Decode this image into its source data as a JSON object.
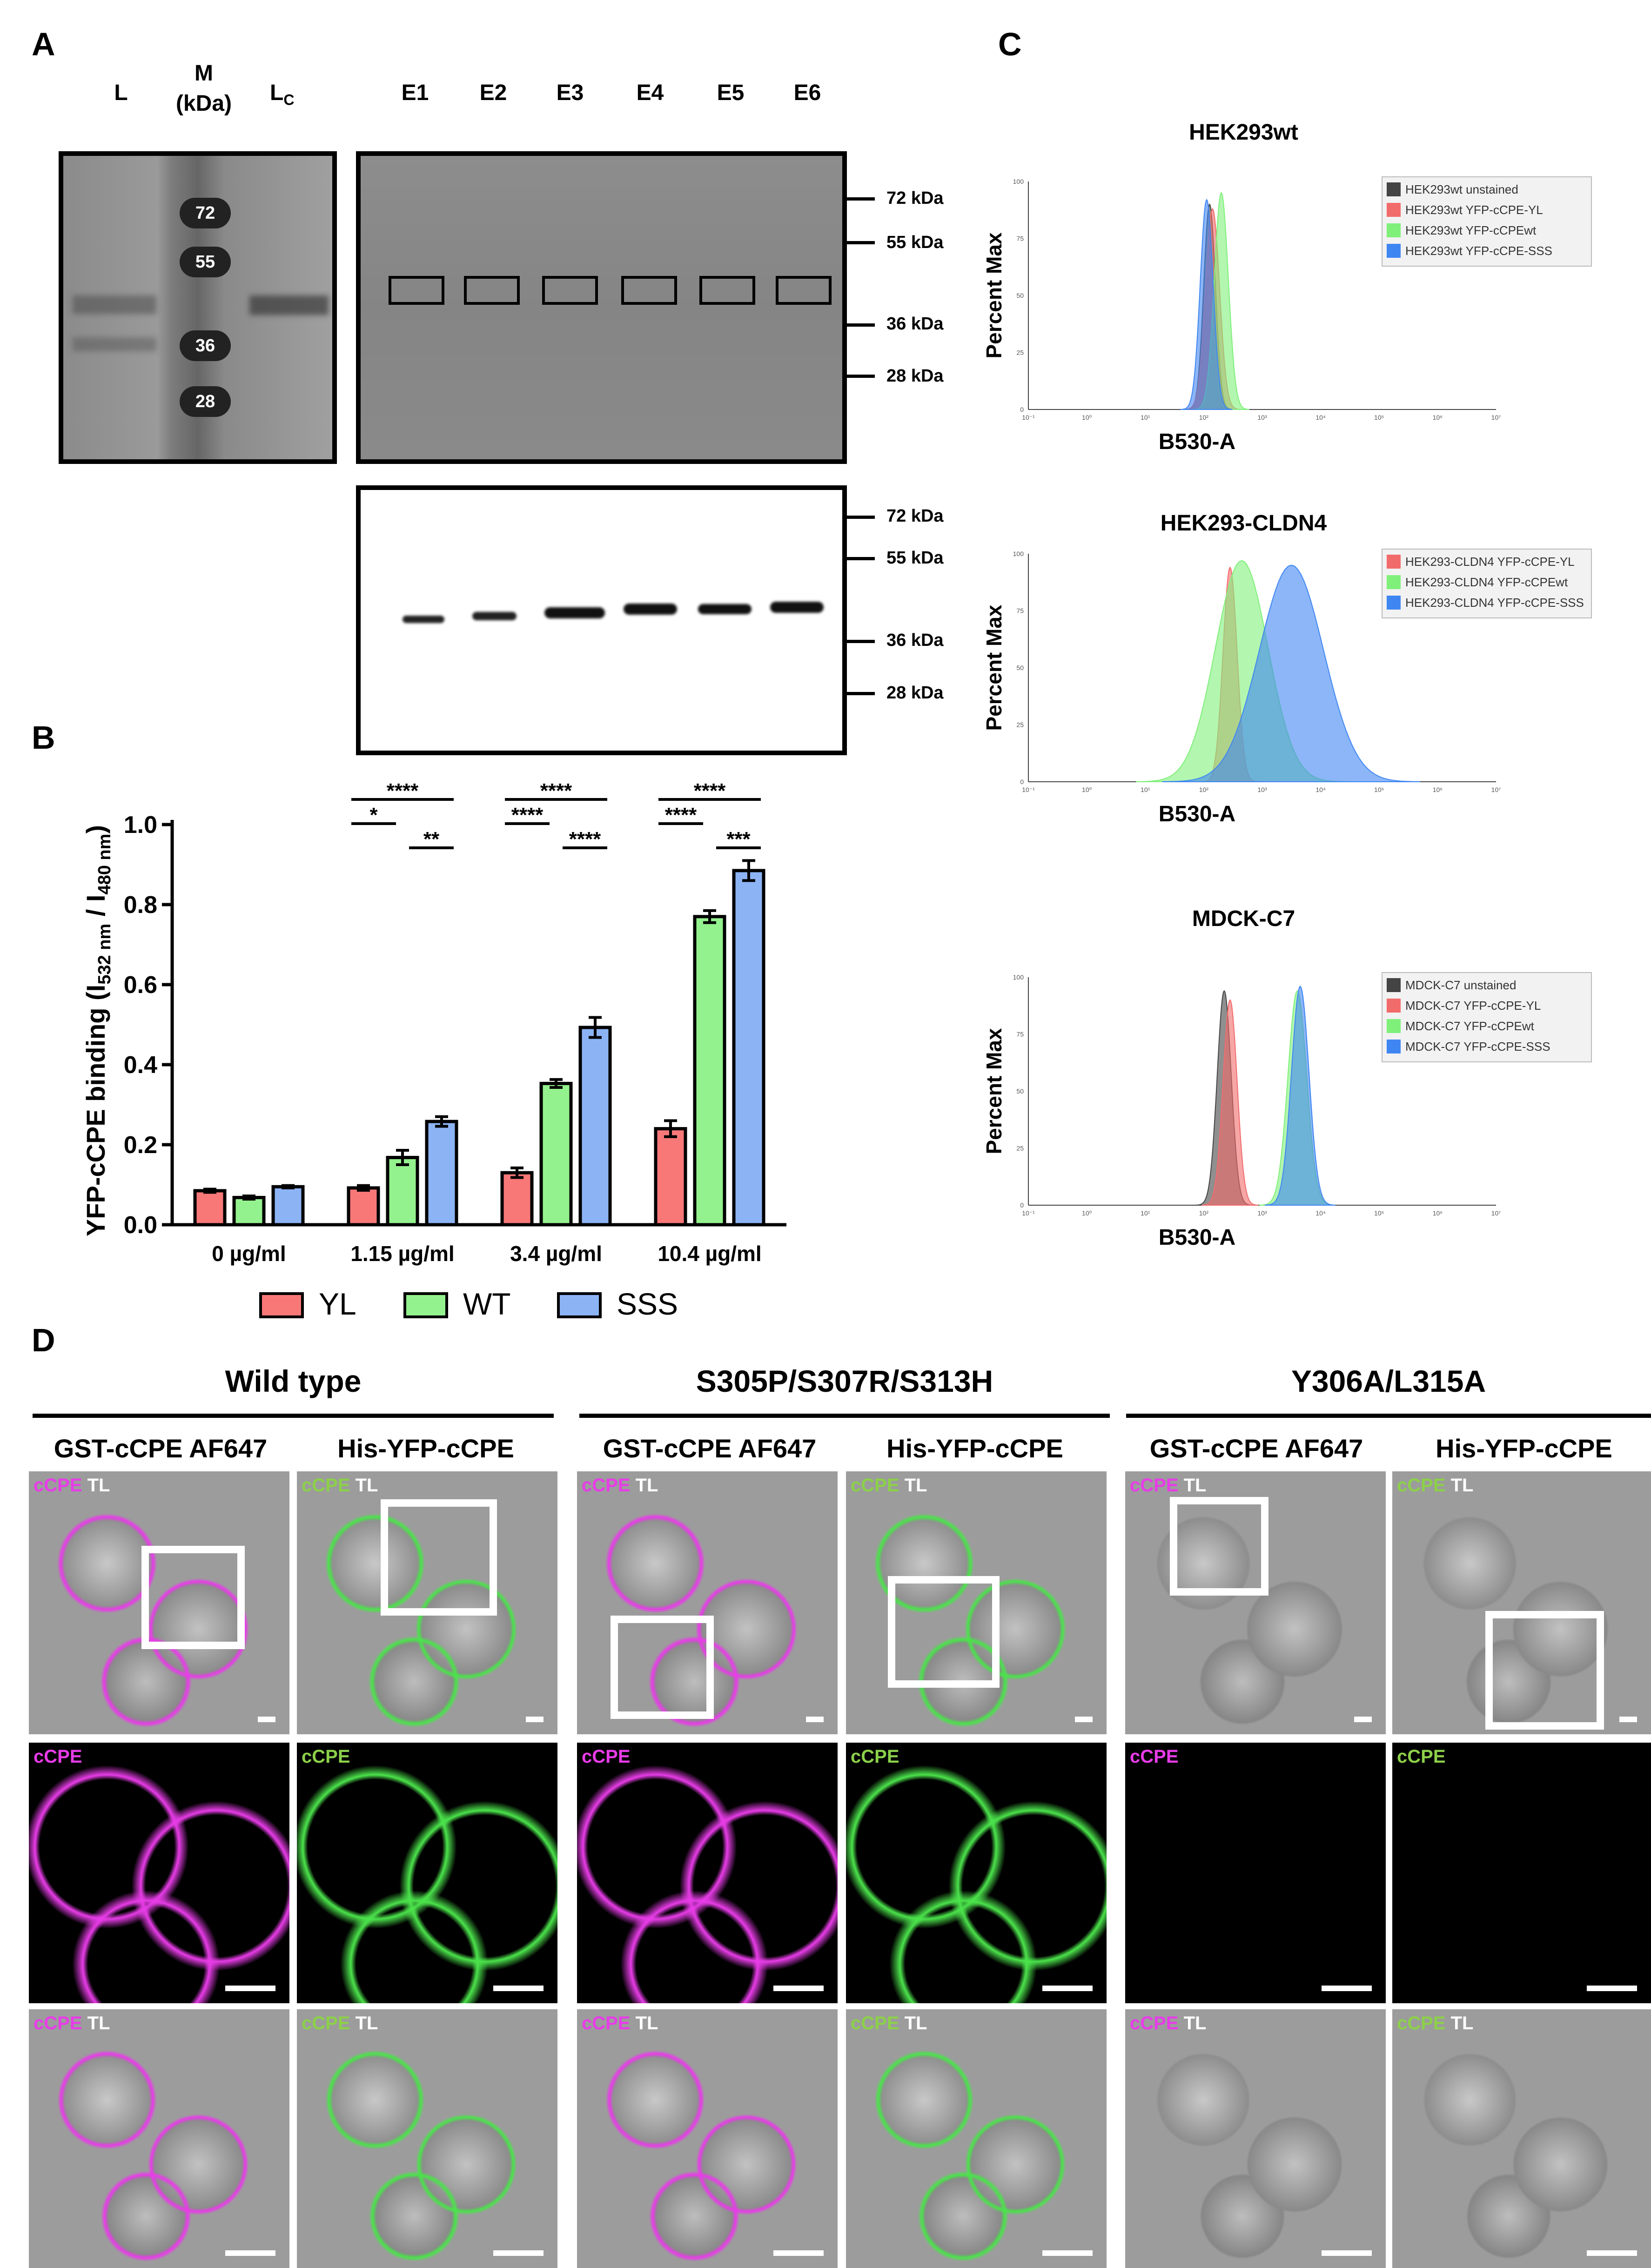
{
  "panel_labels": {
    "a": "A",
    "b": "B",
    "c": "C",
    "d": "D"
  },
  "panelA": {
    "lanes_left": [
      "L",
      "M\n(kDa)",
      "L",
      "C"
    ],
    "lane_L": "L",
    "lane_M": "M",
    "lane_M_unit": "(kDa)",
    "lane_Lc_main": "L",
    "lane_Lc_sub": "C",
    "lanes_right": [
      "E1",
      "E2",
      "E3",
      "E4",
      "E5",
      "E6"
    ],
    "ladder_marks": [
      "72",
      "55",
      "36",
      "28"
    ],
    "mw_labels": [
      "72 kDa",
      "55 kDa",
      "36 kDa",
      "28 kDa"
    ]
  },
  "chart_data": [
    {
      "type": "bar",
      "title": "",
      "ylabel_main": "YFP-cCPE binding (I",
      "ylabel_sub1": "532 nm",
      "ylabel_mid": " / I",
      "ylabel_sub2": "480 nm",
      "ylabel_end": ")",
      "ylim": [
        0,
        1.0
      ],
      "yticks": [
        "0.0",
        "0.2",
        "0.4",
        "0.6",
        "0.8",
        "1.0"
      ],
      "categories": [
        "0 µg/ml",
        "1.15 µg/ml",
        "3.4 µg/ml",
        "10.4 µg/ml"
      ],
      "series": [
        {
          "name": "YL",
          "color": "#f87878",
          "values": [
            0.085,
            0.092,
            0.13,
            0.24
          ],
          "errors": [
            0.004,
            0.006,
            0.012,
            0.02
          ]
        },
        {
          "name": "WT",
          "color": "#94f28e",
          "values": [
            0.068,
            0.168,
            0.353,
            0.77
          ],
          "errors": [
            0.004,
            0.018,
            0.01,
            0.015
          ]
        },
        {
          "name": "SSS",
          "color": "#8cb4f5",
          "values": [
            0.095,
            0.258,
            0.493,
            0.885
          ],
          "errors": [
            0.003,
            0.012,
            0.025,
            0.025
          ]
        }
      ],
      "significance": [
        {
          "cat": 1,
          "pairs": [
            [
              "YL",
              "SSS",
              "****"
            ],
            [
              "YL",
              "WT",
              "*"
            ],
            [
              "WT",
              "SSS",
              "**"
            ]
          ]
        },
        {
          "cat": 2,
          "pairs": [
            [
              "YL",
              "SSS",
              "****"
            ],
            [
              "YL",
              "WT",
              "****"
            ],
            [
              "WT",
              "SSS",
              "****"
            ]
          ]
        },
        {
          "cat": 3,
          "pairs": [
            [
              "YL",
              "SSS",
              "****"
            ],
            [
              "YL",
              "WT",
              "****"
            ],
            [
              "WT",
              "SSS",
              "***"
            ]
          ]
        }
      ],
      "legend": [
        "YL",
        "WT",
        "SSS"
      ]
    },
    {
      "type": "area",
      "title": "HEK293wt",
      "xlabel": "B530-A",
      "ylabel": "Percent Max",
      "yticks": [
        "100",
        "75",
        "50",
        "25",
        "0"
      ],
      "xticks": [
        "10⁻¹",
        "10⁰",
        "10¹",
        "10²",
        "10³",
        "10⁴",
        "10⁵",
        "10⁶",
        "10⁷"
      ],
      "series": [
        {
          "name": "HEK293wt unstained",
          "color": "#444444",
          "peak": 2.1,
          "width": 0.1,
          "height": 90
        },
        {
          "name": "HEK293wt YFP-cCPE-YL",
          "color": "#f26b6b",
          "peak": 2.15,
          "width": 0.12,
          "height": 88
        },
        {
          "name": "HEK293wt YFP-cCPEwt",
          "color": "#7ff07a",
          "peak": 2.3,
          "width": 0.12,
          "height": 95
        },
        {
          "name": "HEK293wt YFP-cCPE-SSS",
          "color": "#3f86f2",
          "peak": 2.05,
          "width": 0.11,
          "height": 92
        }
      ]
    },
    {
      "type": "area",
      "title": "HEK293-CLDN4",
      "xlabel": "B530-A",
      "ylabel": "Percent Max",
      "yticks": [
        "100",
        "75",
        "50",
        "25",
        "0"
      ],
      "xticks": [
        "10⁻¹",
        "10⁰",
        "10¹",
        "10²",
        "10³",
        "10⁴",
        "10⁵",
        "10⁶",
        "10⁷"
      ],
      "series": [
        {
          "name": "HEK293-CLDN4 YFP-cCPE-YL",
          "color": "#f26b6b",
          "peak": 2.45,
          "width": 0.12,
          "height": 94
        },
        {
          "name": "HEK293-CLDN4 YFP-cCPEwt",
          "color": "#7ff07a",
          "peak": 2.65,
          "width": 0.45,
          "height": 97
        },
        {
          "name": "HEK293-CLDN4 YFP-cCPE-SSS",
          "color": "#3f86f2",
          "peak": 3.5,
          "width": 0.55,
          "height": 95
        }
      ]
    },
    {
      "type": "area",
      "title": "MDCK-C7",
      "xlabel": "B530-A",
      "ylabel": "Percent Max",
      "yticks": [
        "100",
        "75",
        "50",
        "25",
        "0"
      ],
      "xticks": [
        "10⁻¹",
        "10⁰",
        "10¹",
        "10²",
        "10³",
        "10⁴",
        "10⁵",
        "10⁶",
        "10⁷"
      ],
      "series": [
        {
          "name": "MDCK-C7 unstained",
          "color": "#444444",
          "peak": 2.35,
          "width": 0.12,
          "height": 94
        },
        {
          "name": "MDCK-C7 YFP-cCPE-YL",
          "color": "#f26b6b",
          "peak": 2.45,
          "width": 0.12,
          "height": 90
        },
        {
          "name": "MDCK-C7 YFP-cCPEwt",
          "color": "#7ff07a",
          "peak": 3.6,
          "width": 0.16,
          "height": 94
        },
        {
          "name": "MDCK-C7 YFP-cCPE-SSS",
          "color": "#3f86f2",
          "peak": 3.65,
          "width": 0.15,
          "height": 96
        }
      ]
    }
  ],
  "panelD": {
    "conditions": [
      "Wild type",
      "S305P/S307R/S313H",
      "Y306A/L315A"
    ],
    "columns": [
      "GST-cCPE AF647",
      "His-YFP-cCPE",
      "GST-cCPE AF647",
      "His-YFP-cCPE",
      "GST-cCPE AF647",
      "His-YFP-cCPE"
    ],
    "label_cCPE": "cCPE",
    "label_TL": "TL",
    "colors": {
      "magenta": "#e83ce8",
      "green": "#4be34b",
      "green_text": "#8cd04a"
    }
  }
}
